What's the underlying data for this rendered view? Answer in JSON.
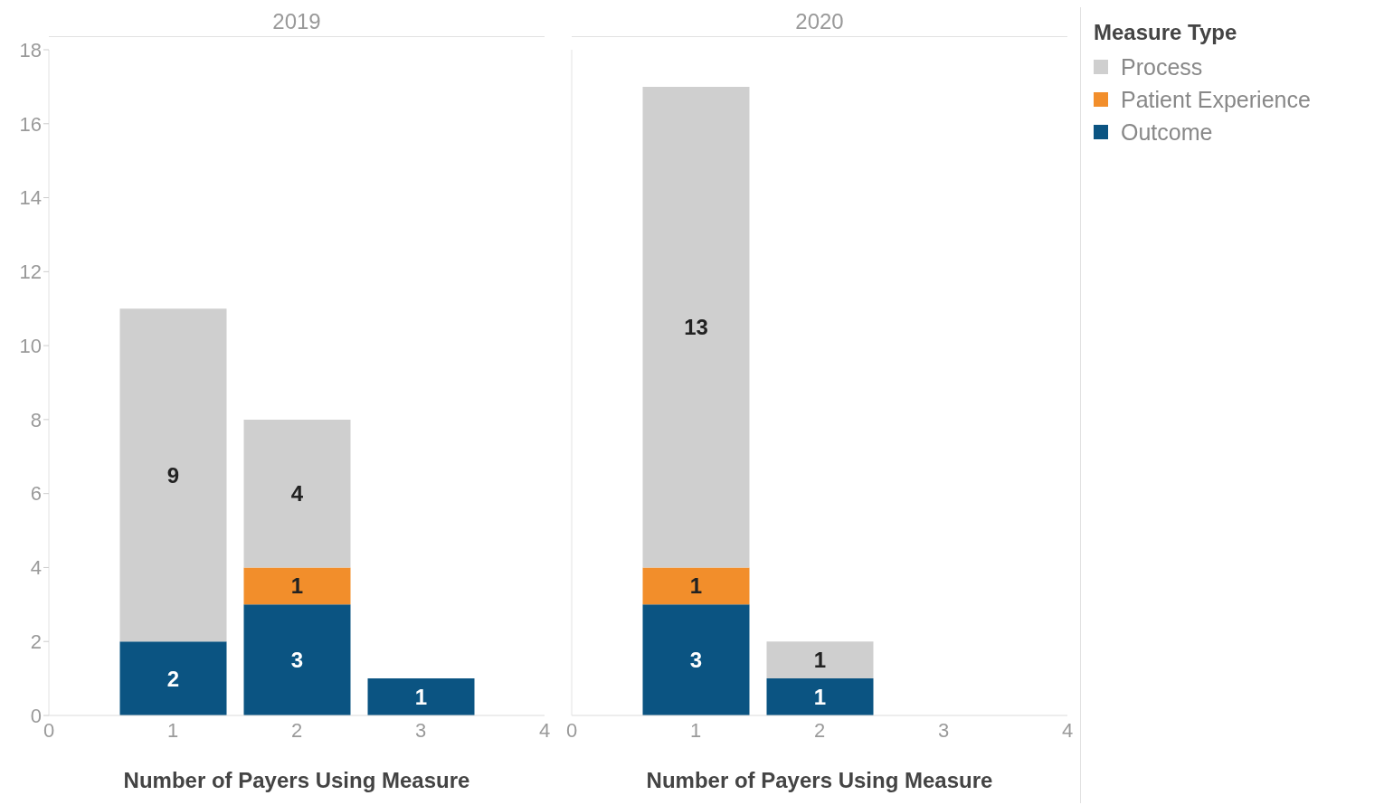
{
  "chart_data": [
    {
      "type": "bar",
      "title": "2019",
      "xlabel": "Number of Payers Using Measure",
      "x": [
        1,
        2,
        3
      ],
      "stacked": true,
      "data_labels": true,
      "xlim": [
        0,
        4
      ],
      "xticks": [
        0,
        1,
        2,
        3,
        4
      ],
      "ylim": [
        0,
        18
      ],
      "yticks": [
        0,
        2,
        4,
        6,
        8,
        10,
        12,
        14,
        16,
        18
      ],
      "legend": false,
      "series": [
        {
          "color": "#0b5482",
          "values": [
            2,
            3,
            1
          ]
        },
        {
          "color": "#f28e2b",
          "values": [
            null,
            1,
            null
          ]
        },
        {
          "color": "#cfcfcf",
          "values": [
            9,
            4,
            null
          ]
        }
      ]
    },
    {
      "type": "bar",
      "title": "2020",
      "xlabel": "Number of Payers Using Measure",
      "x": [
        1,
        2
      ],
      "stacked": true,
      "data_labels": true,
      "xlim": [
        0,
        4
      ],
      "xticks": [
        0,
        1,
        2,
        3,
        4
      ],
      "ylim": [
        0,
        18
      ],
      "yticks": [
        0,
        2,
        4,
        6,
        8,
        10,
        12,
        14,
        16,
        18
      ],
      "tick_labels": "x",
      "legend": "right",
      "legend_title": "Measure Type",
      "series": [
        {
          "name": "Outcome",
          "color": "#0b5482",
          "values": [
            3,
            1
          ]
        },
        {
          "name": "Patient Experience",
          "color": "#f28e2b",
          "values": [
            1,
            null
          ]
        },
        {
          "name": "Process",
          "color": "#cfcfcf",
          "values": [
            13,
            1
          ]
        }
      ]
    }
  ]
}
